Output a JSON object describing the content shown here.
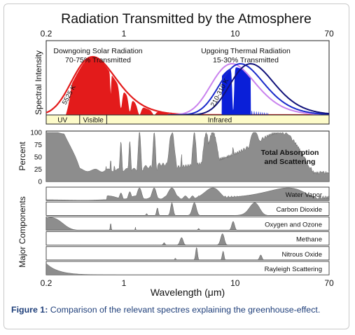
{
  "colors": {
    "accent_red": "#e31b1b",
    "accent_blue": "#0a1fd8",
    "accent_purple": "#c982ee",
    "navy": "#11127a",
    "band_fill": "#fdfbc9",
    "gray_fill": "#8d8d8d",
    "caption_text": "#1f3f7a"
  },
  "figure": {
    "title": "Radiation Transmitted by the Atmosphere",
    "caption_label": "Figure 1:",
    "caption_text": "Comparison of the relevant spectres explaining the greenhouse-effect."
  },
  "chart_data": [
    {
      "type": "area",
      "panel": "spectral-intensity",
      "ylabel": "Spectral Intensity",
      "xscale": "log",
      "xlim": [
        0.2,
        70
      ],
      "top_tick_labels": [
        "0.2",
        "1",
        "10",
        "70"
      ],
      "solar": {
        "heading": "Downgoing Solar Radiation",
        "subheading": "70-75% Transmitted",
        "temperature_label": "5525 K",
        "envelope_color": "#e31b1b",
        "fill_color": "#e31b1b"
      },
      "thermal": {
        "heading": "Upgoing Thermal Radiation",
        "subheading": "15-30% Transmitted",
        "temperature_label": "210-310 K",
        "curve_colors": [
          "#c982ee",
          "#1a2acb",
          "#11127a"
        ],
        "fill_color": "#0a1fd8"
      },
      "bands": [
        {
          "label": "UV",
          "from": 0.2,
          "to": 0.4
        },
        {
          "label": "Visible",
          "from": 0.4,
          "to": 0.7
        },
        {
          "label": "Infrared",
          "from": 0.7,
          "to": 70
        }
      ]
    },
    {
      "type": "area",
      "panel": "total-absorption",
      "ylabel": "Percent",
      "yticks": [
        "100",
        "75",
        "50",
        "25",
        "0"
      ],
      "ylim": [
        0,
        100
      ],
      "xscale": "log",
      "xlim": [
        0.2,
        70
      ],
      "annotation": [
        "Total Absorption",
        "and Scattering"
      ]
    },
    {
      "type": "area",
      "panel": "major-components",
      "ylabel": "Major Components",
      "xscale": "log",
      "xlim": [
        0.2,
        70
      ],
      "components": [
        "Water Vapor",
        "Carbon Dioxide",
        "Oxygen and Ozone",
        "Methane",
        "Nitrous Oxide",
        "Rayleigh Scattering"
      ]
    }
  ],
  "x_axis": {
    "tick_labels": [
      "0.2",
      "1",
      "10",
      "70"
    ],
    "tick_values": [
      0.2,
      1,
      10,
      70
    ],
    "xlabel": "Wavelength (μm)"
  }
}
